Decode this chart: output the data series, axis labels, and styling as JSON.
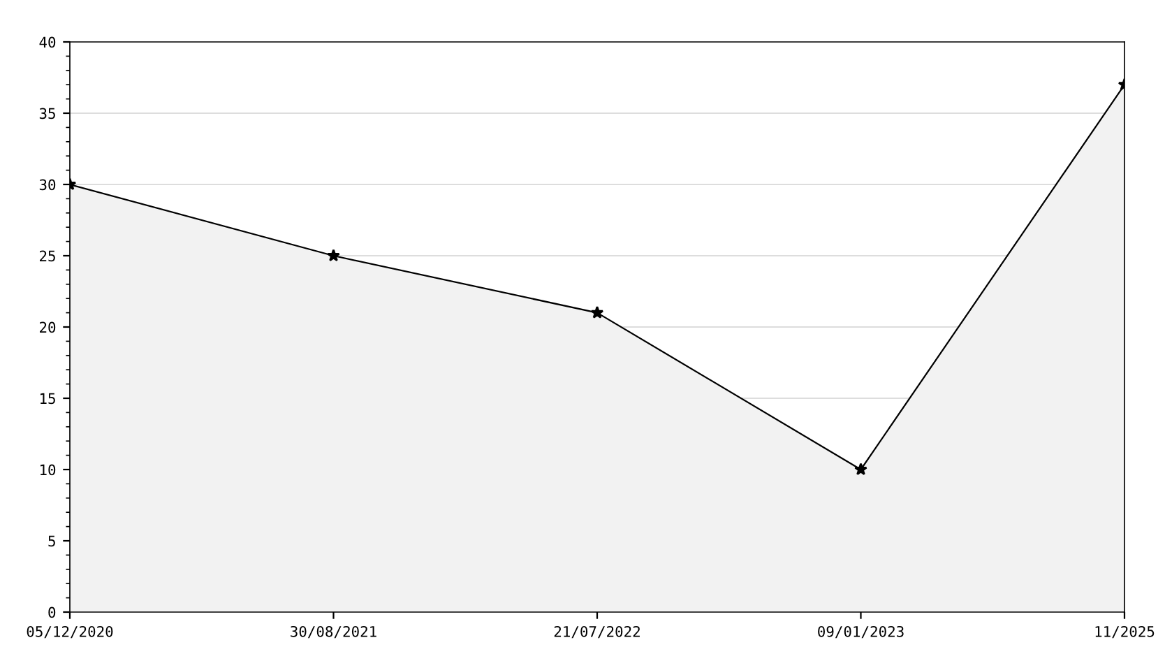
{
  "chart_data": {
    "type": "area",
    "categories": [
      "05/12/2020",
      "30/08/2021",
      "21/07/2022",
      "09/01/2023",
      "11/2025"
    ],
    "series": [
      {
        "color": "#000000",
        "values": [
          30,
          25,
          21,
          10,
          37
        ]
      }
    ],
    "ylim": [
      0,
      40
    ],
    "yticks": [
      0,
      5,
      10,
      15,
      20,
      25,
      30,
      35,
      40
    ],
    "grid": "y",
    "marker": "star",
    "line_style": "solid"
  }
}
